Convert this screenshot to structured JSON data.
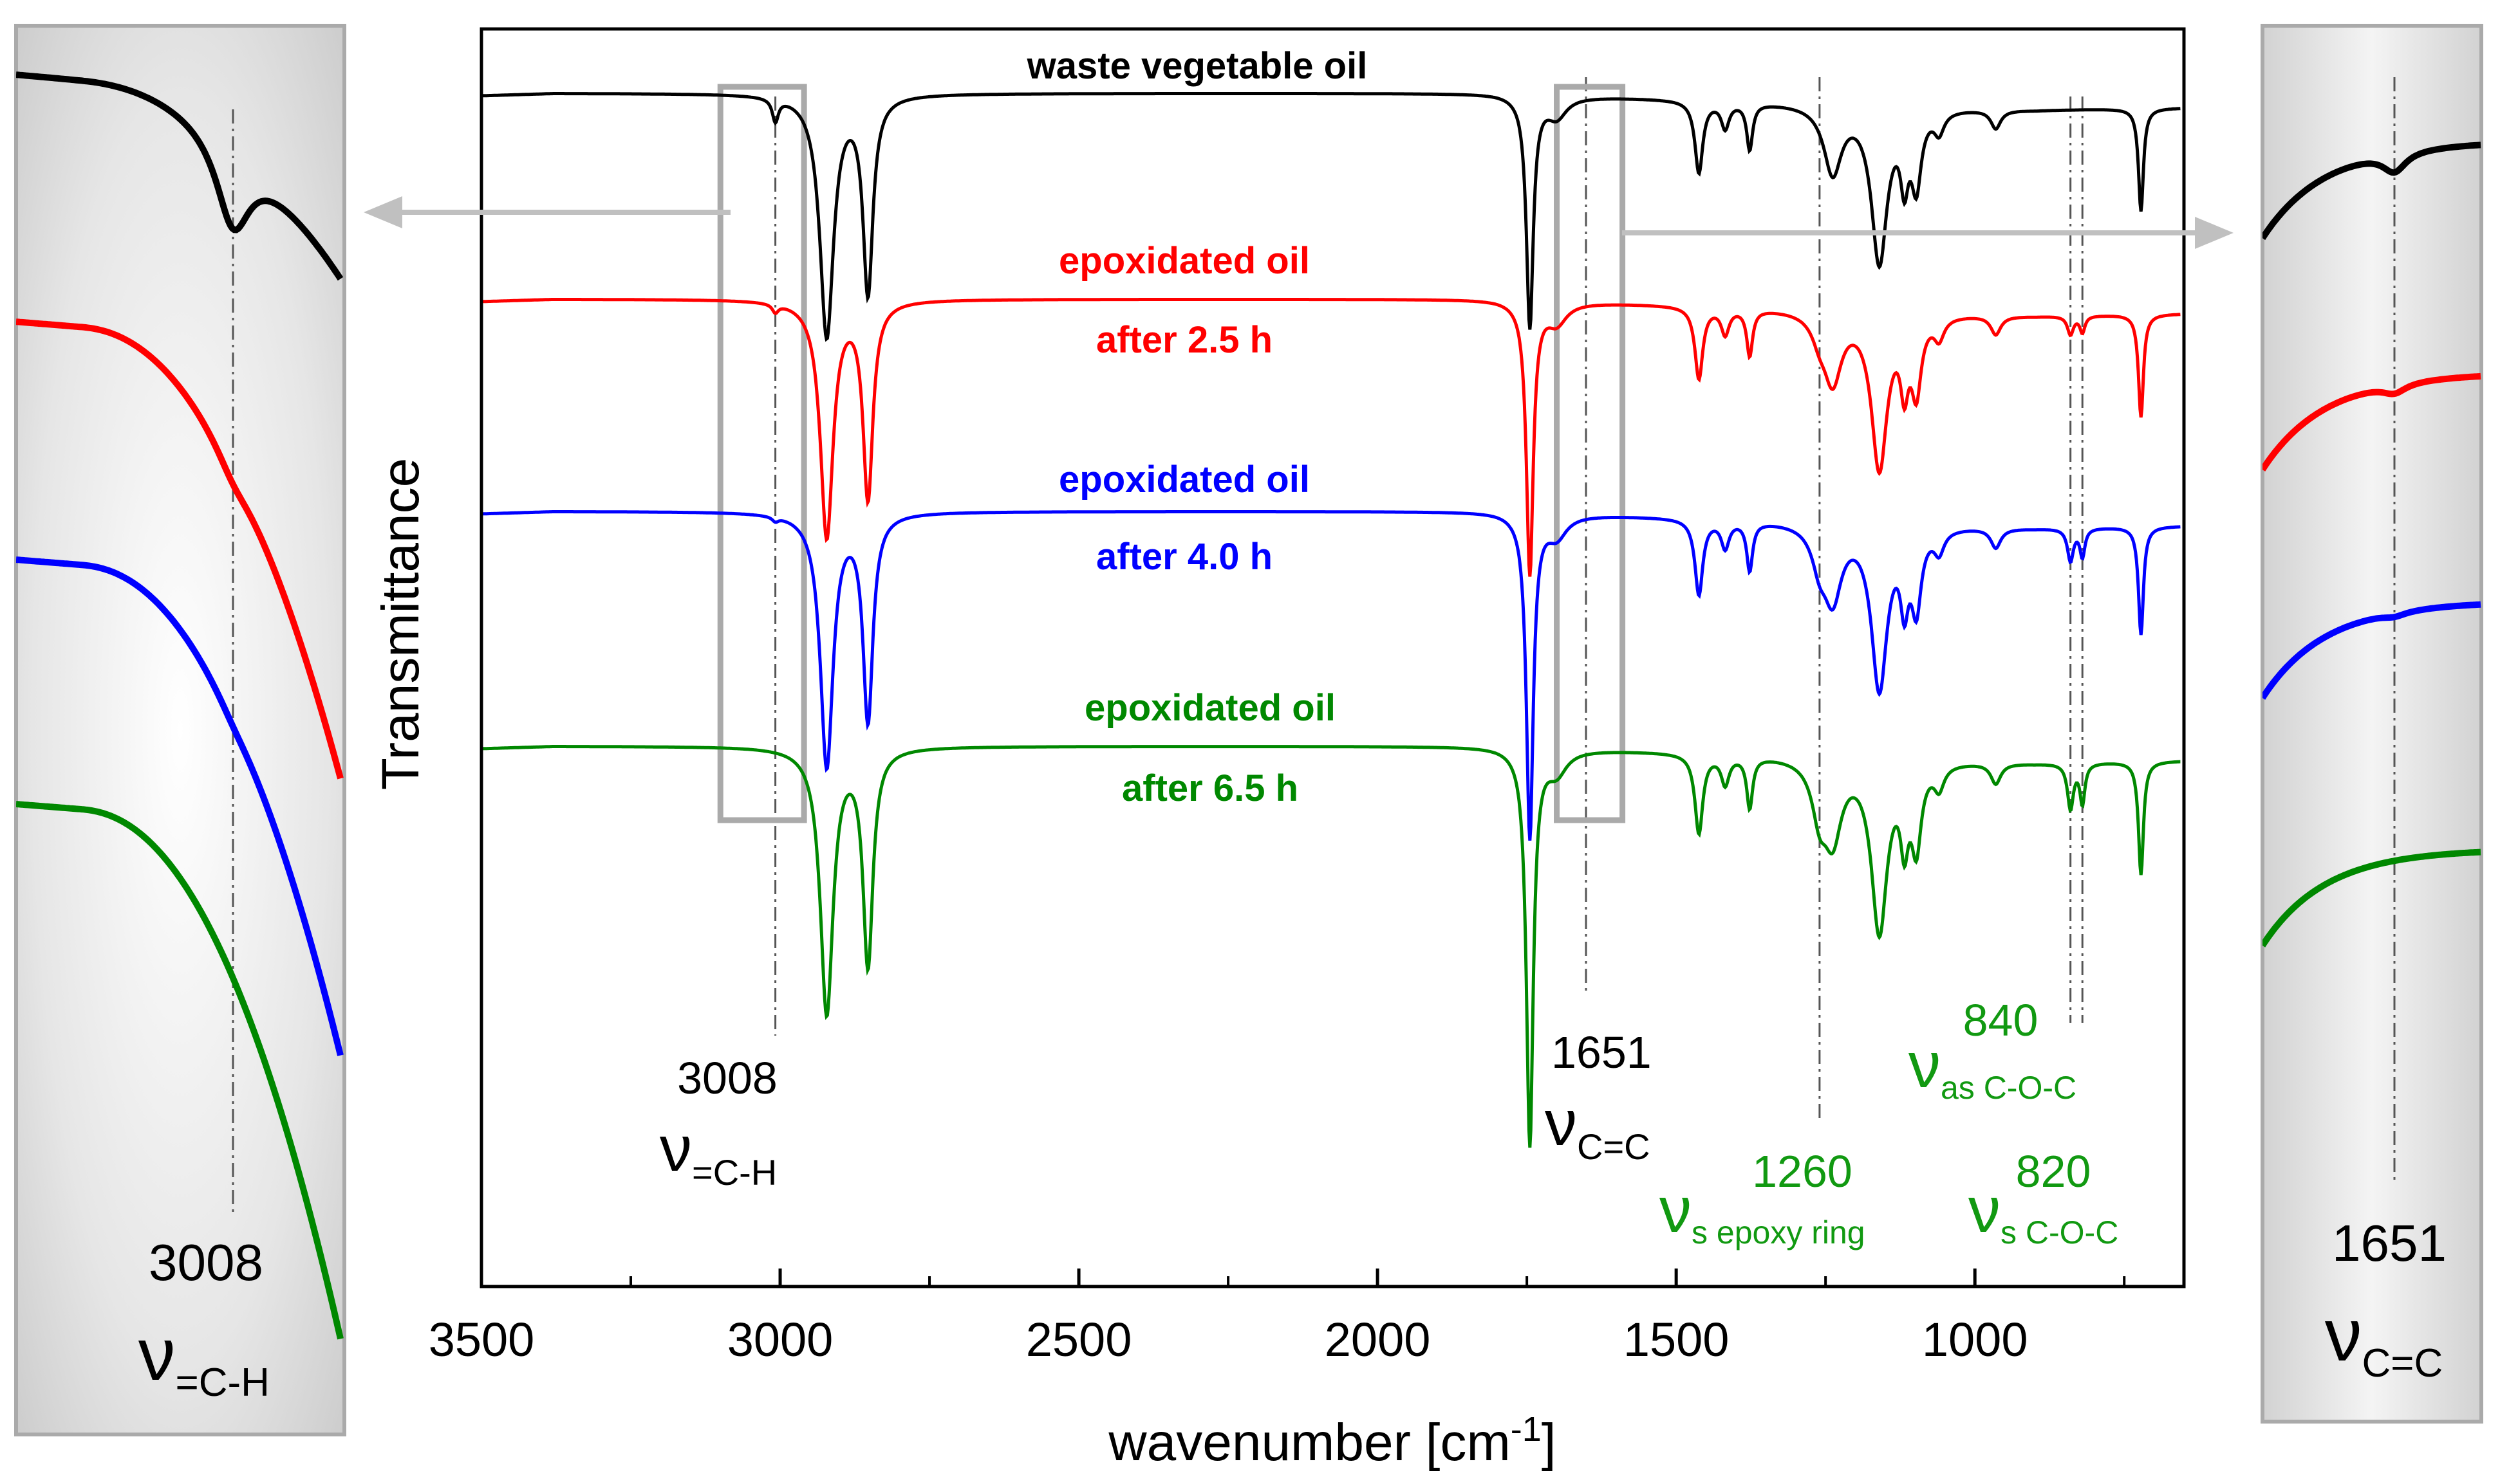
{
  "colors": {
    "black": "#000000",
    "red": "#ff0000",
    "blue": "#0000ff",
    "green": "#008800",
    "label_green": "#119911",
    "frame": "#aaaaaa",
    "guide": "#555555",
    "arrow": "#c0c0c0"
  },
  "chart_data": {
    "type": "line",
    "title": "",
    "xlabel_prefix": "wavenumber [cm",
    "xlabel_sup": "-1",
    "xlabel_suffix": "]",
    "ylabel": "Transmittance",
    "xlim": [
      3500,
      650
    ],
    "x_ticks": [
      "3500",
      "3000",
      "2500",
      "2000",
      "1500",
      "1000"
    ],
    "y_ticks": [],
    "series": [
      {
        "name": "waste vegetable oil",
        "label_line1": "waste vegetable oil",
        "label_line2": "",
        "color_key": "black",
        "offset": 0
      },
      {
        "name": "epoxidated oil after 2.5 h",
        "label_line1": "epoxidated oil",
        "label_line2": "after 2.5 h",
        "color_key": "red",
        "offset": 1
      },
      {
        "name": "epoxidated oil after 4.0 h",
        "label_line1": "epoxidated oil",
        "label_line2": "after 4.0 h",
        "color_key": "blue",
        "offset": 2
      },
      {
        "name": "epoxidated oil after 6.5 h",
        "label_line1": "epoxidated oil",
        "label_line2": "after 6.5 h",
        "color_key": "green",
        "offset": 3
      }
    ],
    "peaks": [
      {
        "position": 3008,
        "label": "3008",
        "symbol": "ν",
        "sub": "=C-H"
      },
      {
        "position": 1651,
        "label": "1651",
        "symbol": "ν",
        "sub": "C=C"
      },
      {
        "position": 1260,
        "label": "1260",
        "symbol": "ν",
        "sub": "s epoxy ring"
      },
      {
        "position": 840,
        "label": "840",
        "symbol": "ν",
        "sub": "as C-O-C"
      },
      {
        "position": 820,
        "label": "820",
        "symbol": "ν",
        "sub": "s C-O-C"
      }
    ],
    "insets": [
      {
        "name": "left",
        "range_cm1": [
          3100,
          2960
        ],
        "label": "3008",
        "symbol": "ν",
        "sub": "=C-H"
      },
      {
        "name": "right",
        "range_cm1": [
          1700,
          1600
        ],
        "label": "1651",
        "symbol": "ν",
        "sub": "C=C"
      }
    ]
  }
}
